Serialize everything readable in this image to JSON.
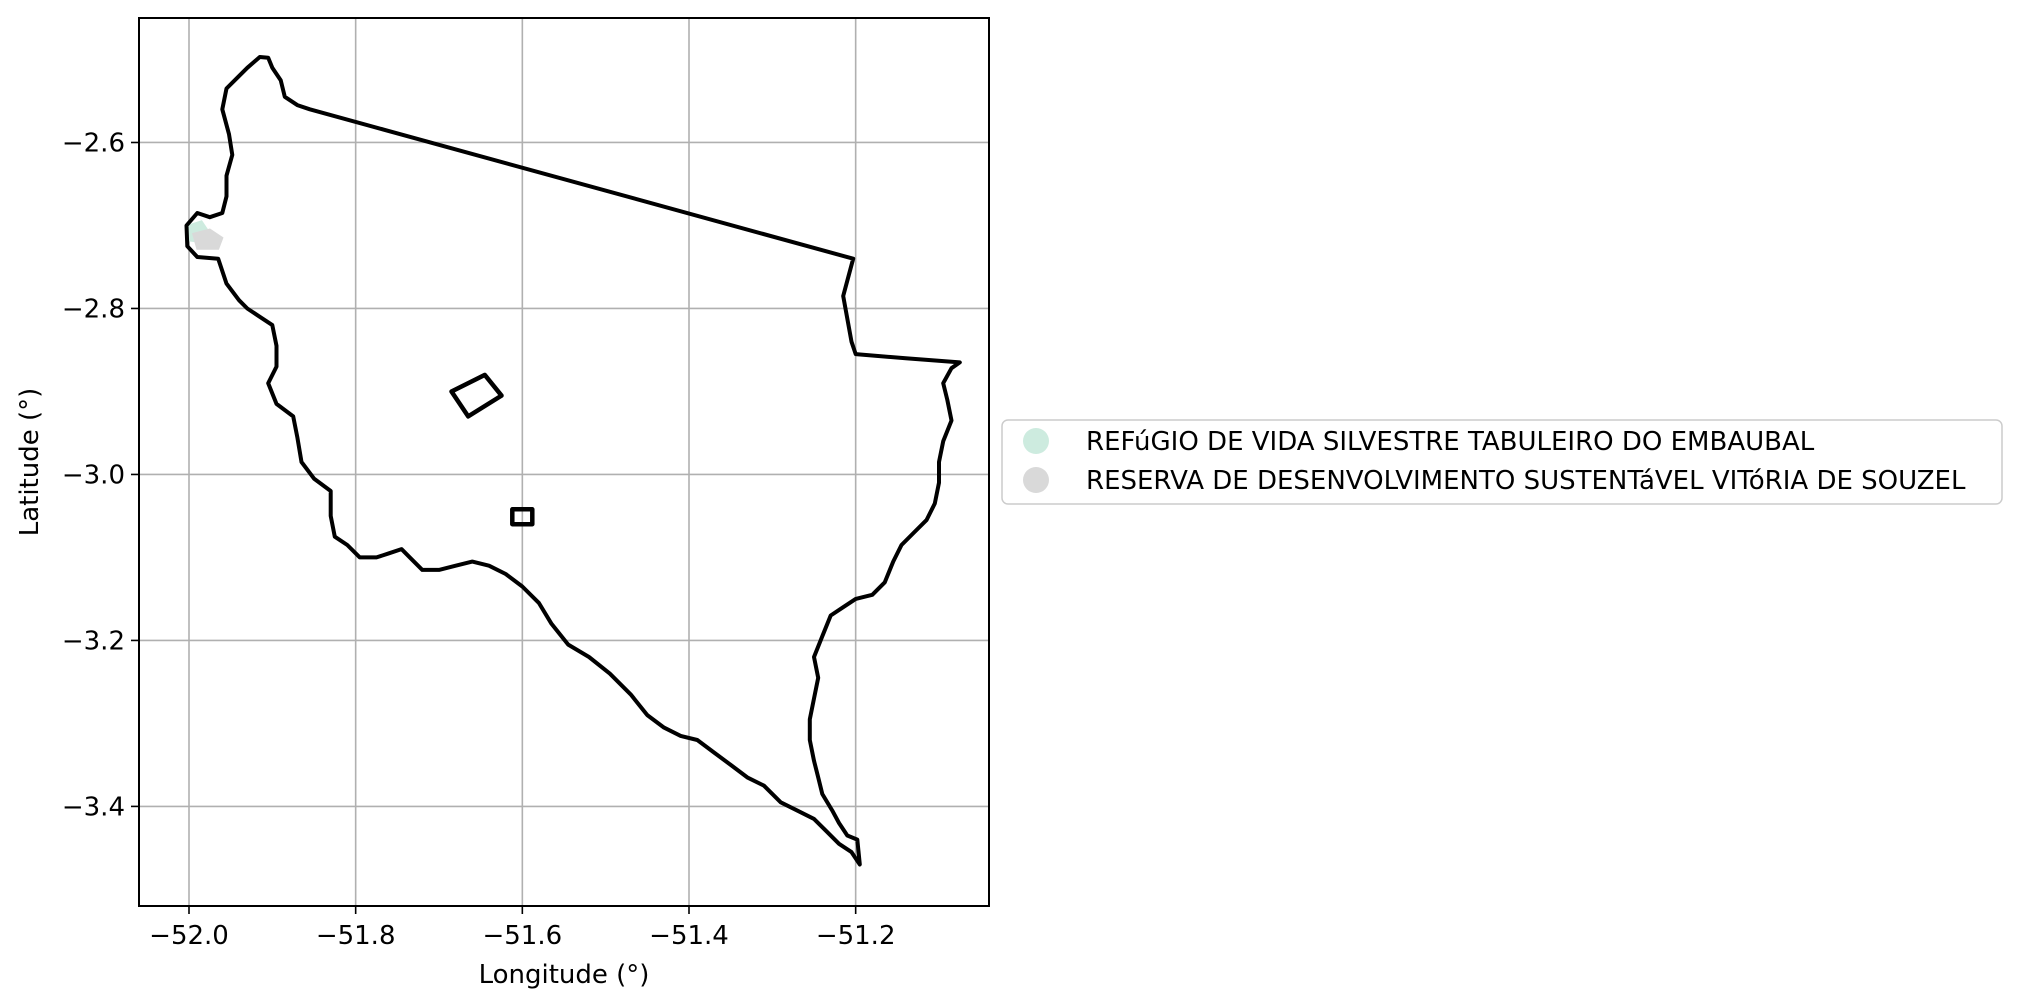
{
  "chart_data": {
    "type": "map",
    "xlabel": "Longitude (°)",
    "ylabel": "Latitude (°)",
    "xlim": [
      -52.06,
      -51.04
    ],
    "ylim": [
      -3.52,
      -2.45
    ],
    "grid": true,
    "x_ticks": [
      -52.0,
      -51.8,
      -51.6,
      -51.4,
      -51.2
    ],
    "x_tick_labels": [
      "−52.0",
      "−51.8",
      "−51.6",
      "−51.4",
      "−51.2"
    ],
    "y_ticks": [
      -2.6,
      -2.8,
      -3.0,
      -3.2,
      -3.4
    ],
    "y_tick_labels": [
      "−2.6",
      "−2.8",
      "−3.0",
      "−3.2",
      "−3.4"
    ],
    "legend_placement": "center-left-outside",
    "legend": [
      {
        "label": "REFúGIO DE VIDA SILVESTRE TABULEIRO DO EMBAUBAL",
        "color": "#cdebdf"
      },
      {
        "label": "RESERVA DE DESENVOLVIMENTO SUSTENTáVEL VITóRIA DE SOUZEL",
        "color": "#d9d9d9"
      }
    ],
    "boundary": [
      [
        -51.905,
        -2.498
      ],
      [
        -51.915,
        -2.497
      ],
      [
        -51.93,
        -2.51
      ],
      [
        -51.94,
        -2.52
      ],
      [
        -51.955,
        -2.535
      ],
      [
        -51.96,
        -2.56
      ],
      [
        -51.952,
        -2.59
      ],
      [
        -51.948,
        -2.615
      ],
      [
        -51.955,
        -2.64
      ],
      [
        -51.955,
        -2.665
      ],
      [
        -51.96,
        -2.685
      ],
      [
        -51.975,
        -2.69
      ],
      [
        -51.99,
        -2.685
      ],
      [
        -52.003,
        -2.7
      ],
      [
        -52.002,
        -2.725
      ],
      [
        -51.99,
        -2.738
      ],
      [
        -51.965,
        -2.74
      ],
      [
        -51.955,
        -2.77
      ],
      [
        -51.94,
        -2.79
      ],
      [
        -51.93,
        -2.8
      ],
      [
        -51.915,
        -2.81
      ],
      [
        -51.9,
        -2.82
      ],
      [
        -51.895,
        -2.845
      ],
      [
        -51.895,
        -2.87
      ],
      [
        -51.905,
        -2.89
      ],
      [
        -51.895,
        -2.915
      ],
      [
        -51.875,
        -2.93
      ],
      [
        -51.87,
        -2.955
      ],
      [
        -51.865,
        -2.985
      ],
      [
        -51.85,
        -3.005
      ],
      [
        -51.83,
        -3.02
      ],
      [
        -51.83,
        -3.05
      ],
      [
        -51.825,
        -3.075
      ],
      [
        -51.81,
        -3.085
      ],
      [
        -51.795,
        -3.1
      ],
      [
        -51.775,
        -3.1
      ],
      [
        -51.76,
        -3.095
      ],
      [
        -51.745,
        -3.09
      ],
      [
        -51.735,
        -3.1
      ],
      [
        -51.72,
        -3.115
      ],
      [
        -51.7,
        -3.115
      ],
      [
        -51.68,
        -3.11
      ],
      [
        -51.66,
        -3.105
      ],
      [
        -51.64,
        -3.11
      ],
      [
        -51.62,
        -3.12
      ],
      [
        -51.6,
        -3.135
      ],
      [
        -51.58,
        -3.155
      ],
      [
        -51.565,
        -3.18
      ],
      [
        -51.545,
        -3.205
      ],
      [
        -51.52,
        -3.22
      ],
      [
        -51.495,
        -3.24
      ],
      [
        -51.47,
        -3.265
      ],
      [
        -51.45,
        -3.29
      ],
      [
        -51.43,
        -3.305
      ],
      [
        -51.41,
        -3.315
      ],
      [
        -51.39,
        -3.32
      ],
      [
        -51.37,
        -3.335
      ],
      [
        -51.35,
        -3.35
      ],
      [
        -51.33,
        -3.365
      ],
      [
        -51.31,
        -3.375
      ],
      [
        -51.29,
        -3.395
      ],
      [
        -51.27,
        -3.405
      ],
      [
        -51.25,
        -3.415
      ],
      [
        -51.235,
        -3.43
      ],
      [
        -51.22,
        -3.445
      ],
      [
        -51.205,
        -3.455
      ],
      [
        -51.195,
        -3.47
      ],
      [
        -51.198,
        -3.44
      ],
      [
        -51.21,
        -3.435
      ],
      [
        -51.22,
        -3.42
      ],
      [
        -51.228,
        -3.405
      ],
      [
        -51.24,
        -3.385
      ],
      [
        -51.245,
        -3.365
      ],
      [
        -51.25,
        -3.345
      ],
      [
        -51.255,
        -3.32
      ],
      [
        -51.255,
        -3.295
      ],
      [
        -51.25,
        -3.27
      ],
      [
        -51.245,
        -3.245
      ],
      [
        -51.25,
        -3.22
      ],
      [
        -51.24,
        -3.195
      ],
      [
        -51.23,
        -3.17
      ],
      [
        -51.215,
        -3.16
      ],
      [
        -51.2,
        -3.15
      ],
      [
        -51.18,
        -3.145
      ],
      [
        -51.165,
        -3.13
      ],
      [
        -51.155,
        -3.105
      ],
      [
        -51.145,
        -3.085
      ],
      [
        -51.13,
        -3.07
      ],
      [
        -51.115,
        -3.055
      ],
      [
        -51.105,
        -3.035
      ],
      [
        -51.1,
        -3.01
      ],
      [
        -51.1,
        -2.985
      ],
      [
        -51.095,
        -2.96
      ],
      [
        -51.085,
        -2.935
      ],
      [
        -51.09,
        -2.91
      ],
      [
        -51.095,
        -2.89
      ],
      [
        -51.085,
        -2.872
      ],
      [
        -51.075,
        -2.865
      ],
      [
        -51.14,
        -2.86
      ],
      [
        -51.2,
        -2.855
      ],
      [
        -51.205,
        -2.84
      ],
      [
        -51.215,
        -2.785
      ],
      [
        -51.203,
        -2.74
      ],
      [
        -51.855,
        -2.56
      ],
      [
        -51.87,
        -2.555
      ],
      [
        -51.885,
        -2.545
      ],
      [
        -51.89,
        -2.525
      ],
      [
        -51.9,
        -2.51
      ],
      [
        -51.905,
        -2.498
      ]
    ],
    "polygons": [
      [
        [
          -51.685,
          -2.9
        ],
        [
          -51.645,
          -2.88
        ],
        [
          -51.625,
          -2.905
        ],
        [
          -51.665,
          -2.93
        ],
        [
          -51.685,
          -2.9
        ]
      ],
      [
        [
          -51.612,
          -3.042
        ],
        [
          -51.588,
          -3.042
        ],
        [
          -51.588,
          -3.06
        ],
        [
          -51.612,
          -3.06
        ],
        [
          -51.612,
          -3.042
        ]
      ]
    ],
    "areas": [
      {
        "color": "#cdebdf",
        "points": [
          [
            -52.0,
            -2.7
          ],
          [
            -51.985,
            -2.695
          ],
          [
            -51.975,
            -2.71
          ],
          [
            -51.985,
            -2.72
          ],
          [
            -52.0,
            -2.718
          ]
        ]
      },
      {
        "color": "#d9d9d9",
        "points": [
          [
            -51.995,
            -2.71
          ],
          [
            -51.975,
            -2.705
          ],
          [
            -51.96,
            -2.715
          ],
          [
            -51.965,
            -2.728
          ],
          [
            -51.99,
            -2.728
          ]
        ]
      }
    ]
  }
}
